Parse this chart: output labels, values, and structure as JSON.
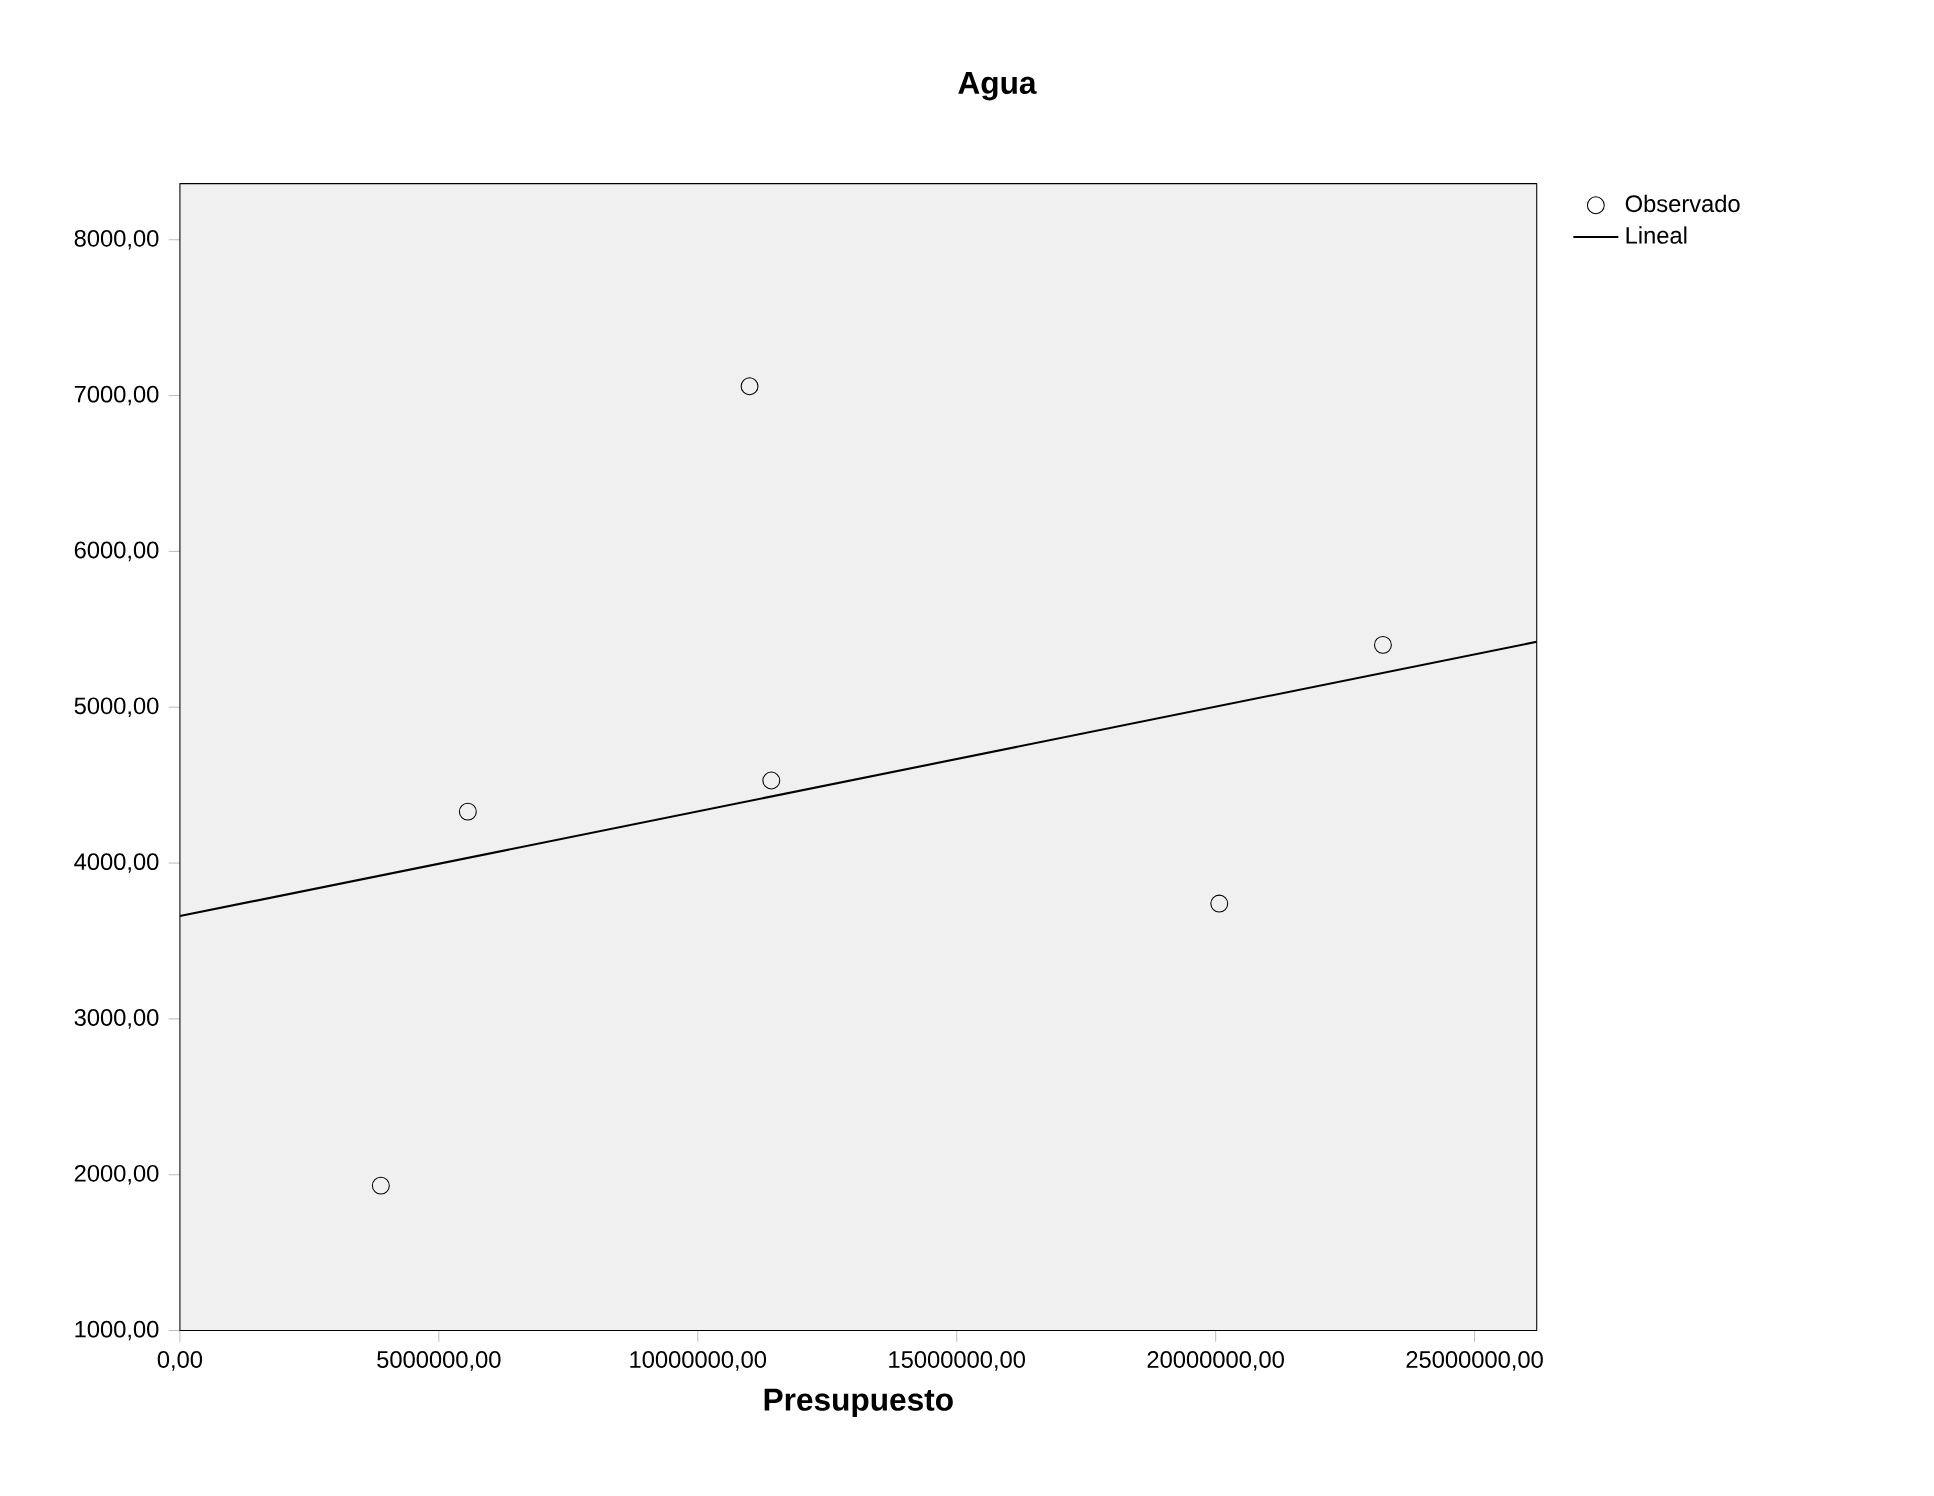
{
  "chart_data": {
    "type": "scatter",
    "title": "Agua",
    "xlabel": "Presupuesto",
    "legend": "top right",
    "grid": false,
    "xlim": [
      0,
      26200000
    ],
    "ylim": [
      1000,
      8360
    ],
    "xticks": [
      {
        "value": 0,
        "label": "0,00"
      },
      {
        "value": 5000000,
        "label": "5000000,00"
      },
      {
        "value": 10000000,
        "label": "10000000,00"
      },
      {
        "value": 15000000,
        "label": "15000000,00"
      },
      {
        "value": 20000000,
        "label": "20000000,00"
      },
      {
        "value": 25000000,
        "label": "25000000,00"
      }
    ],
    "yticks": [
      {
        "value": 1000,
        "label": "1000,00"
      },
      {
        "value": 2000,
        "label": "2000,00"
      },
      {
        "value": 3000,
        "label": "3000,00"
      },
      {
        "value": 4000,
        "label": "4000,00"
      },
      {
        "value": 5000,
        "label": "5000,00"
      },
      {
        "value": 6000,
        "label": "6000,00"
      },
      {
        "value": 7000,
        "label": "7000,00"
      },
      {
        "value": 8000,
        "label": "8000,00"
      }
    ],
    "series": [
      {
        "name": "Observado",
        "marker": "circle",
        "color": "#000000",
        "x": [
          3880000,
          5560000,
          11000000,
          11420000,
          20070000,
          23230000
        ],
        "values": [
          1930,
          4330,
          7060,
          4530,
          3740,
          5400
        ]
      },
      {
        "name": "Lineal",
        "type": "line",
        "marker": "none",
        "color": "#000000",
        "x": [
          0,
          26200000
        ],
        "values": [
          3660,
          5420
        ]
      }
    ]
  }
}
